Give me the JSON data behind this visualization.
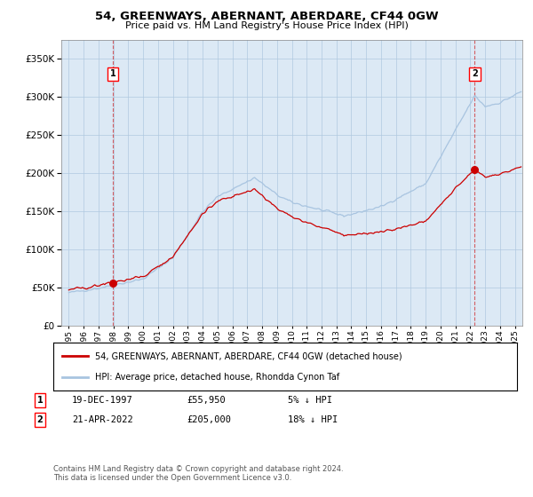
{
  "title": "54, GREENWAYS, ABERNANT, ABERDARE, CF44 0GW",
  "subtitle": "Price paid vs. HM Land Registry's House Price Index (HPI)",
  "legend_line1": "54, GREENWAYS, ABERNANT, ABERDARE, CF44 0GW (detached house)",
  "legend_line2": "HPI: Average price, detached house, Rhondda Cynon Taf",
  "sale1_date": "19-DEC-1997",
  "sale1_price": "£55,950",
  "sale1_note": "5% ↓ HPI",
  "sale2_date": "21-APR-2022",
  "sale2_price": "£205,000",
  "sale2_note": "18% ↓ HPI",
  "footer": "Contains HM Land Registry data © Crown copyright and database right 2024.\nThis data is licensed under the Open Government Licence v3.0.",
  "hpi_color": "#a8c4e0",
  "price_color": "#cc0000",
  "marker_color": "#cc0000",
  "sale1_year": 1997.96,
  "sale1_value": 55950,
  "sale2_year": 2022.3,
  "sale2_value": 205000,
  "ylim": [
    0,
    375000
  ],
  "yticks": [
    0,
    50000,
    100000,
    150000,
    200000,
    250000,
    300000,
    350000
  ],
  "background_color": "#ffffff",
  "plot_bg_color": "#dce9f5",
  "grid_color": "#b0c8e0",
  "vline_color": "#cc0000"
}
